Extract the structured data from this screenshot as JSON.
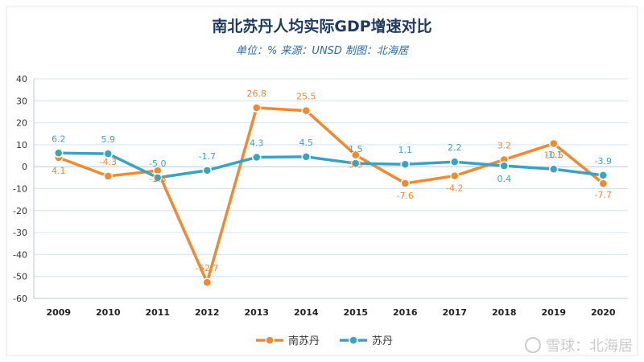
{
  "header": {
    "title": "南北苏丹人均实际GDP增速对比",
    "subtitle": "单位：% 来源：UNSD 制图：北海居"
  },
  "watermark": {
    "text": "雪球：北海居",
    "icon": "snowball-logo-icon"
  },
  "colors": {
    "south_sudan": "#f0892f",
    "sudan": "#3aa3c2",
    "grid": "#d6e4f0"
  },
  "chart_data": {
    "type": "line",
    "title": "南北苏丹人均实际GDP增速对比",
    "subtitle": "单位：% 来源：UNSD 制图：北海居",
    "xlabel": "",
    "ylabel": "",
    "categories": [
      "2009",
      "2010",
      "2011",
      "2012",
      "2013",
      "2014",
      "2015",
      "2016",
      "2017",
      "2018",
      "2019",
      "2020"
    ],
    "ylim": [
      -60,
      40
    ],
    "yticks": [
      40,
      30,
      20,
      10,
      0,
      -10,
      -20,
      -30,
      -40,
      -50,
      -60
    ],
    "grid": true,
    "legend_position": "bottom",
    "series": [
      {
        "name": "南苏丹",
        "color": "#f0892f",
        "values": [
          4.1,
          -4.3,
          -1.8,
          -52.7,
          26.8,
          25.5,
          5.3,
          -7.6,
          -4.2,
          3.2,
          10.5,
          -7.7
        ]
      },
      {
        "name": "苏丹",
        "color": "#3aa3c2",
        "values": [
          6.2,
          5.9,
          -5.0,
          -1.7,
          4.3,
          4.5,
          1.5,
          1.1,
          2.2,
          0.4,
          -1.1,
          -3.9
        ]
      }
    ]
  }
}
